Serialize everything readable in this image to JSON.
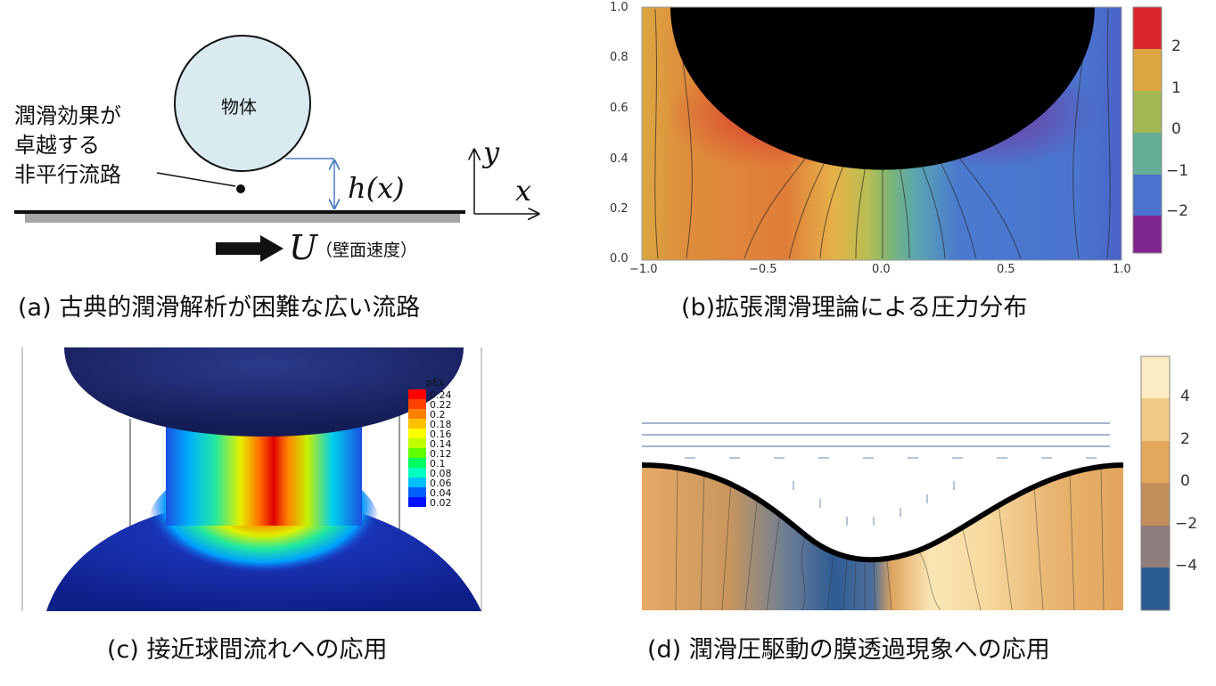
{
  "panel_a": {
    "object_label": "物体",
    "channel_label_lines": [
      "潤滑効果が",
      "卓越する",
      "非平行流路"
    ],
    "gap_label": "h(x)",
    "axis_y": "y",
    "axis_x": "x",
    "velocity_symbol": "U",
    "velocity_note": "（壁面速度）",
    "caption": "(a) 古典的潤滑解析が困難な広い流路"
  },
  "panel_b": {
    "caption": "(b)拡張潤滑理論による圧力分布",
    "x_ticks": [
      "−1.0",
      "−0.5",
      "0.0",
      "0.5",
      "1.0"
    ],
    "y_ticks": [
      "0.0",
      "0.2",
      "0.4",
      "0.6",
      "0.8",
      "1.0"
    ],
    "colorbar_ticks": [
      "2",
      "1",
      "0",
      "−1",
      "−2"
    ],
    "colorbar_colors": [
      "#d8262b",
      "#dca742",
      "#a3b852",
      "#64ad97",
      "#4a73cd",
      "#7f2590"
    ]
  },
  "panel_c": {
    "caption": "(c) 接近球間流れへの応用",
    "legend_title": "pEx",
    "legend_values": [
      "0.24",
      "0.22",
      "0.2",
      "0.18",
      "0.16",
      "0.14",
      "0.12",
      "0.1",
      "0.08",
      "0.06",
      "0.04",
      "0.02"
    ],
    "legend_colors": [
      "#ff0000",
      "#ff4000",
      "#ff8000",
      "#ffc000",
      "#ffff00",
      "#c0ff00",
      "#60ff00",
      "#00ff60",
      "#00ffc0",
      "#00c0ff",
      "#0060ff",
      "#0010ff"
    ]
  },
  "panel_d": {
    "caption": "(d) 潤滑圧駆動の膜透過現象への応用",
    "colorbar_ticks": [
      "4",
      "2",
      "0",
      "−2",
      "−4"
    ],
    "colorbar_colors": [
      "#fbecc3",
      "#f3c988",
      "#e4a85c",
      "#c28e5c",
      "#8e7d7d",
      "#2c5c94"
    ]
  }
}
